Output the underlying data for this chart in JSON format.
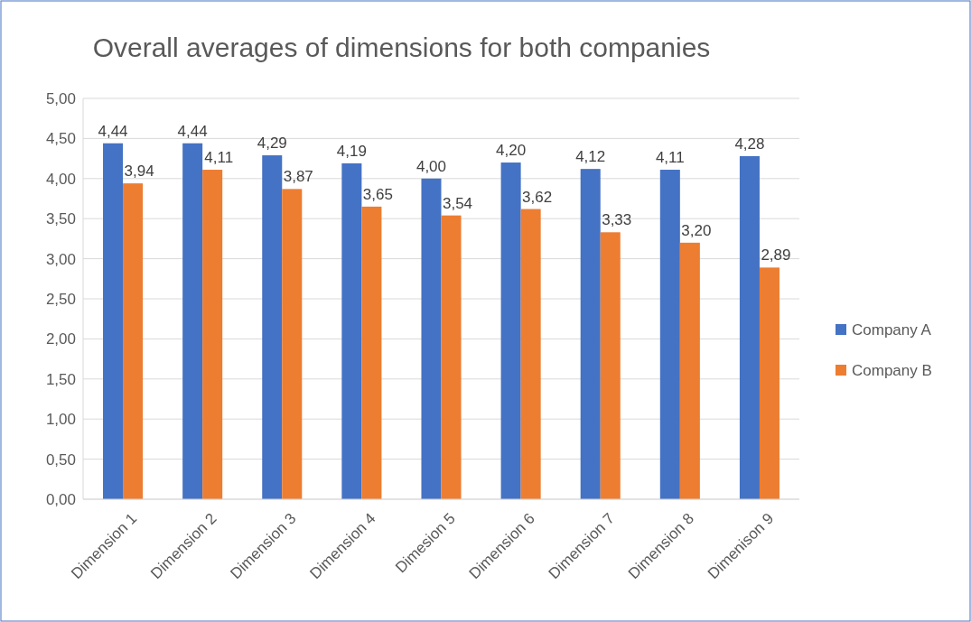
{
  "chart_data": {
    "type": "bar",
    "title": "Overall averages of dimensions for both companies",
    "categories": [
      "Dimension 1",
      "Dimension 2",
      "Dimension 3",
      "Dimension 4",
      "Dimesion 5",
      "Dimension 6",
      "Dimension 7",
      "Dimension 8",
      "Dimenison 9"
    ],
    "series": [
      {
        "name": "Company A",
        "color": "#4472c4",
        "values": [
          4.44,
          4.44,
          4.29,
          4.19,
          4.0,
          4.2,
          4.12,
          4.11,
          4.28
        ],
        "value_labels": [
          "4,44",
          "4,44",
          "4,29",
          "4,19",
          "4,00",
          "4,20",
          "4,12",
          "4,11",
          "4,28"
        ]
      },
      {
        "name": "Company B",
        "color": "#ed7d31",
        "values": [
          3.94,
          4.11,
          3.87,
          3.65,
          3.54,
          3.62,
          3.33,
          3.2,
          2.89
        ],
        "value_labels": [
          "3,94",
          "4,11",
          "3,87",
          "3,65",
          "3,54",
          "3,62",
          "3,33",
          "3,20",
          "2,89"
        ]
      }
    ],
    "ylim": [
      0,
      5
    ],
    "yticks": [
      {
        "value": 0,
        "label": "0,00"
      },
      {
        "value": 0.5,
        "label": "0,50"
      },
      {
        "value": 1,
        "label": "1,00"
      },
      {
        "value": 1.5,
        "label": "1,50"
      },
      {
        "value": 2,
        "label": "2,00"
      },
      {
        "value": 2.5,
        "label": "2,50"
      },
      {
        "value": 3,
        "label": "3,00"
      },
      {
        "value": 3.5,
        "label": "3,50"
      },
      {
        "value": 4,
        "label": "4,00"
      },
      {
        "value": 4.5,
        "label": "4,50"
      },
      {
        "value": 5,
        "label": "5,00"
      }
    ],
    "grid": "y",
    "legend": "right"
  }
}
